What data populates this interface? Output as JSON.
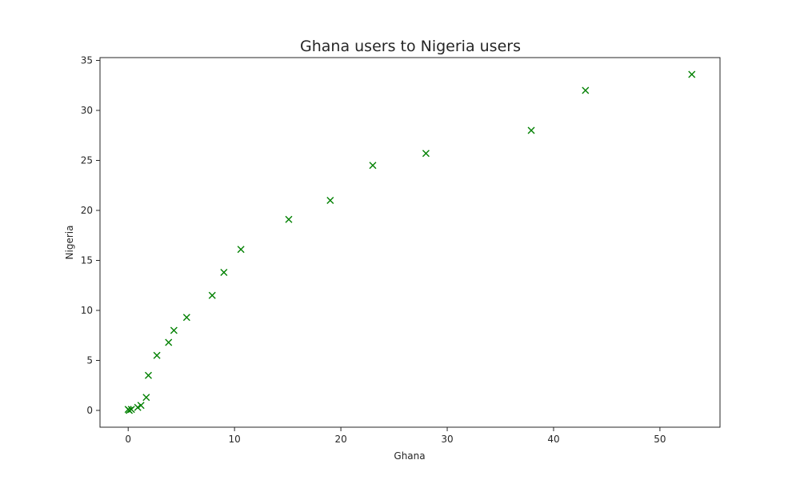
{
  "chart_data": {
    "type": "scatter",
    "title": "Ghana users to Nigeria users",
    "xlabel": "Ghana",
    "ylabel": "Nigeria",
    "xlim": [
      -2.65,
      55.65
    ],
    "ylim": [
      -1.68,
      35.28
    ],
    "xticks": [
      0,
      10,
      20,
      30,
      40,
      50
    ],
    "yticks": [
      0,
      5,
      10,
      15,
      20,
      25,
      30,
      35
    ],
    "grid": false,
    "marker": "x",
    "marker_color": "#008000",
    "series": [
      {
        "x": [
          0.0,
          0.1,
          0.3,
          0.9,
          1.2,
          1.7,
          1.9,
          2.7,
          3.8,
          4.3,
          5.5,
          7.9,
          9.0,
          10.6,
          15.1,
          19.0,
          23.0,
          28.0,
          37.9,
          43.0,
          53.0
        ],
        "y": [
          0.1,
          0.0,
          0.1,
          0.3,
          0.5,
          1.3,
          3.5,
          5.5,
          6.8,
          8.0,
          9.3,
          11.5,
          13.8,
          16.1,
          19.1,
          21.0,
          24.5,
          25.7,
          28.0,
          32.0,
          33.6
        ]
      }
    ]
  }
}
